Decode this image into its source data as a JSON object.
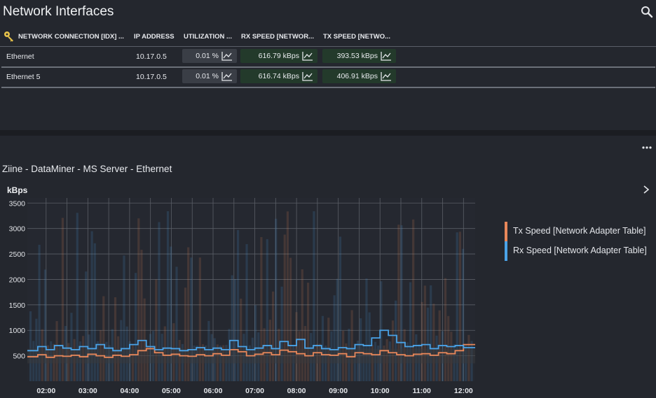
{
  "header": {
    "title": "Network Interfaces"
  },
  "table": {
    "columns": [
      "NETWORK CONNECTION [IDX] ...",
      "IP ADDRESS",
      "UTILIZATION ...",
      "RX SPEED [NETWOR...",
      "TX SPEED [NETWO..."
    ],
    "rows": [
      {
        "name": "Ethernet",
        "ip": "10.17.0.5",
        "utilization": "0.01 %",
        "rx": "616.79 kBps",
        "tx": "393.53 kBps"
      },
      {
        "name": "Ethernet 5",
        "ip": "10.17.0.5",
        "utilization": "0.01 %",
        "rx": "616.74 kBps",
        "tx": "406.91 kBps"
      }
    ]
  },
  "chart_panel": {
    "title": "Ziine - DataMiner - MS Server - Ethernet",
    "unit": "kBps"
  },
  "colors": {
    "tx": "#e8875a",
    "rx": "#4aa3e8",
    "grid": "#5a5e66",
    "background": "#24272e",
    "speed_pill": "#233a2b"
  },
  "chart_data": {
    "type": "line",
    "ylabel": "kBps",
    "ylim": [
      0,
      3600
    ],
    "yticks": [
      500,
      1000,
      1500,
      2000,
      2500,
      3000,
      3500
    ],
    "xticks": [
      "02:00",
      "03:00",
      "04:00",
      "05:00",
      "06:00",
      "07:00",
      "08:00",
      "09:00",
      "10:00",
      "11:00",
      "12:00"
    ],
    "grid": true,
    "legend_position": "right",
    "series": [
      {
        "name": "Tx Speed [Network Adapter Table]",
        "color": "#e8875a",
        "x": [
          1.8,
          2.0,
          2.2,
          2.4,
          2.6,
          2.8,
          3.0,
          3.2,
          3.4,
          3.6,
          3.8,
          4.0,
          4.2,
          4.4,
          4.6,
          4.8,
          5.0,
          5.2,
          5.4,
          5.6,
          5.8,
          6.0,
          6.2,
          6.4,
          6.6,
          6.8,
          7.0,
          7.2,
          7.4,
          7.6,
          7.8,
          8.0,
          8.2,
          8.4,
          8.6,
          8.8,
          9.0,
          9.2,
          9.4,
          9.6,
          9.8,
          10.0,
          10.2,
          10.4,
          10.6,
          10.8,
          11.0,
          11.2,
          11.4,
          11.6,
          11.8,
          12.0,
          12.2
        ],
        "y": [
          480,
          520,
          470,
          500,
          490,
          510,
          480,
          530,
          500,
          470,
          510,
          490,
          520,
          600,
          640,
          560,
          510,
          530,
          500,
          490,
          520,
          500,
          540,
          510,
          620,
          580,
          500,
          530,
          560,
          520,
          610,
          580,
          540,
          500,
          560,
          520,
          510,
          540,
          480,
          560,
          540,
          520,
          600,
          560,
          520,
          500,
          530,
          540,
          510,
          560,
          540,
          600,
          720
        ]
      },
      {
        "name": "Rx Speed [Network Adapter Table]",
        "color": "#4aa3e8",
        "x": [
          1.8,
          2.0,
          2.2,
          2.4,
          2.6,
          2.8,
          3.0,
          3.2,
          3.4,
          3.6,
          3.8,
          4.0,
          4.2,
          4.4,
          4.6,
          4.8,
          5.0,
          5.2,
          5.4,
          5.6,
          5.8,
          6.0,
          6.2,
          6.4,
          6.6,
          6.8,
          7.0,
          7.2,
          7.4,
          7.6,
          7.8,
          8.0,
          8.2,
          8.4,
          8.6,
          8.8,
          9.0,
          9.2,
          9.4,
          9.6,
          9.8,
          10.0,
          10.2,
          10.4,
          10.6,
          10.8,
          11.0,
          11.2,
          11.4,
          11.6,
          11.8,
          12.0,
          12.2
        ],
        "y": [
          600,
          680,
          620,
          700,
          650,
          620,
          680,
          640,
          720,
          650,
          600,
          640,
          720,
          800,
          680,
          620,
          650,
          640,
          600,
          620,
          660,
          620,
          650,
          620,
          800,
          680,
          620,
          650,
          700,
          640,
          780,
          700,
          820,
          650,
          700,
          640,
          620,
          660,
          640,
          720,
          700,
          850,
          1000,
          900,
          760,
          680,
          700,
          720,
          640,
          700,
          680,
          700,
          660
        ]
      }
    ]
  }
}
